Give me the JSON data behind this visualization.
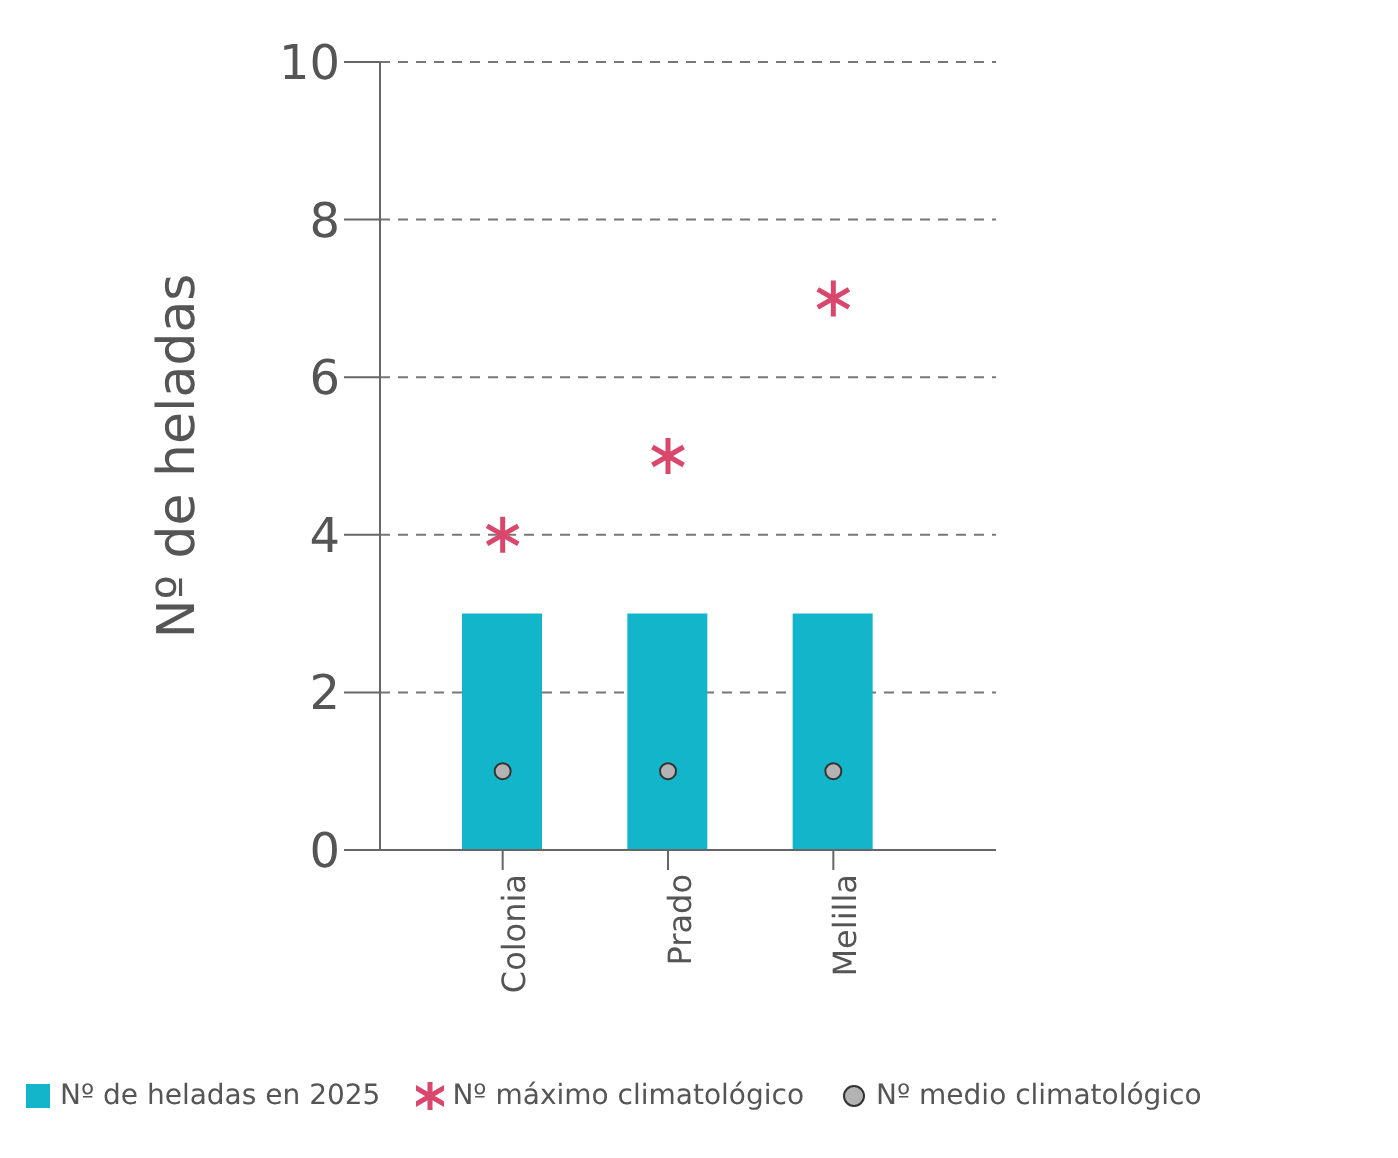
{
  "chart_data": {
    "type": "bar",
    "ylabel": "Nº de heladas",
    "categories": [
      "Colonia",
      "Prado",
      "Melilla"
    ],
    "series": [
      {
        "name": "Nº de heladas en 2025",
        "color": "#12b5c9",
        "values": [
          3,
          3,
          3
        ]
      },
      {
        "name": "Nº máximo climatológico",
        "type": "scatter",
        "marker": "cross",
        "color": "#d9476d",
        "values": [
          4,
          5,
          7
        ]
      },
      {
        "name": "Nº medio climatológico",
        "type": "scatter",
        "marker": "circle",
        "color": "#b3b3b3",
        "values": [
          1,
          1,
          1
        ]
      }
    ],
    "ylim": [
      0,
      10
    ],
    "yticks": [
      0,
      2,
      4,
      6,
      8,
      10
    ],
    "grid": "y",
    "legend": "bottom"
  }
}
